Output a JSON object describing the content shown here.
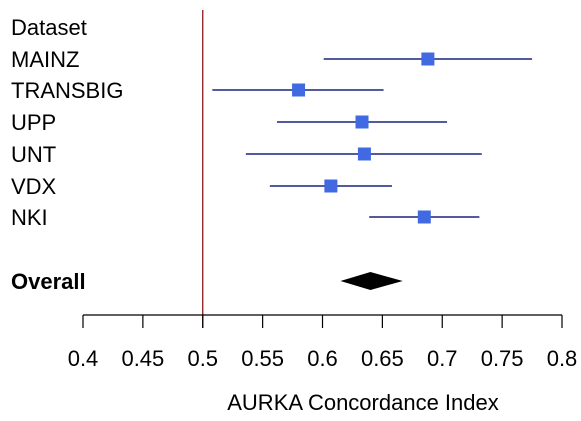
{
  "chart_data": {
    "type": "forest",
    "header": "Dataset",
    "xlabel": "AURKA Concordance Index",
    "xlim": [
      0.4,
      0.8
    ],
    "ticks": [
      0.4,
      0.45,
      0.5,
      0.55,
      0.6,
      0.65,
      0.7,
      0.75,
      0.8
    ],
    "tick_labels": [
      "0.4",
      "0.45",
      "0.5",
      "0.55",
      "0.6",
      "0.65",
      "0.7",
      "0.75",
      "0.8"
    ],
    "reference_line": 0.5,
    "studies": [
      {
        "name": "MAINZ",
        "estimate": 0.688,
        "lower": 0.601,
        "upper": 0.775
      },
      {
        "name": "TRANSBIG",
        "estimate": 0.58,
        "lower": 0.508,
        "upper": 0.651
      },
      {
        "name": "UPP",
        "estimate": 0.633,
        "lower": 0.562,
        "upper": 0.704
      },
      {
        "name": "UNT",
        "estimate": 0.635,
        "lower": 0.536,
        "upper": 0.733
      },
      {
        "name": "VDX",
        "estimate": 0.607,
        "lower": 0.556,
        "upper": 0.658
      },
      {
        "name": "NKI",
        "estimate": 0.685,
        "lower": 0.639,
        "upper": 0.731
      }
    ],
    "overall": {
      "name": "Overall",
      "estimate": 0.64,
      "lower": 0.615,
      "upper": 0.667
    },
    "colors": {
      "ci_line": "#1a237e",
      "point": "#4169e1",
      "diamond": "#000000",
      "reference": "#8b1a1a",
      "axis": "#000000"
    }
  }
}
